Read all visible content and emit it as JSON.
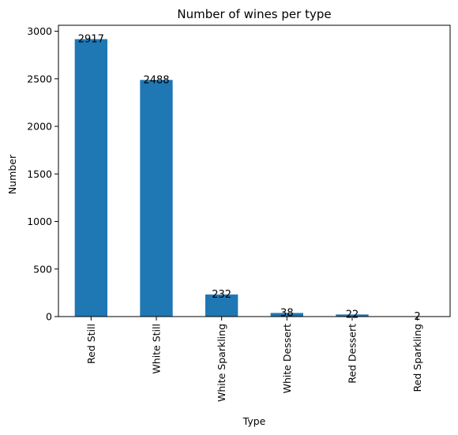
{
  "chart_data": {
    "type": "bar",
    "title": "Number of wines per type",
    "xlabel": "Type",
    "ylabel": "Number",
    "categories": [
      "Red Still",
      "White Still",
      "White Sparkling",
      "White Dessert",
      "Red Dessert",
      "Red Sparkling"
    ],
    "values": [
      2917,
      2488,
      232,
      38,
      22,
      2
    ],
    "value_labels": [
      "2917",
      "2488",
      "232",
      "38",
      "22",
      "2"
    ],
    "ylim": [
      0,
      3062.85
    ],
    "yticks": [
      0,
      500,
      1000,
      1500,
      2000,
      2500,
      3000
    ],
    "ytick_labels": [
      "0",
      "500",
      "1000",
      "1500",
      "2000",
      "2500",
      "3000"
    ],
    "bar_color": "#1f77b4",
    "grid": false
  }
}
